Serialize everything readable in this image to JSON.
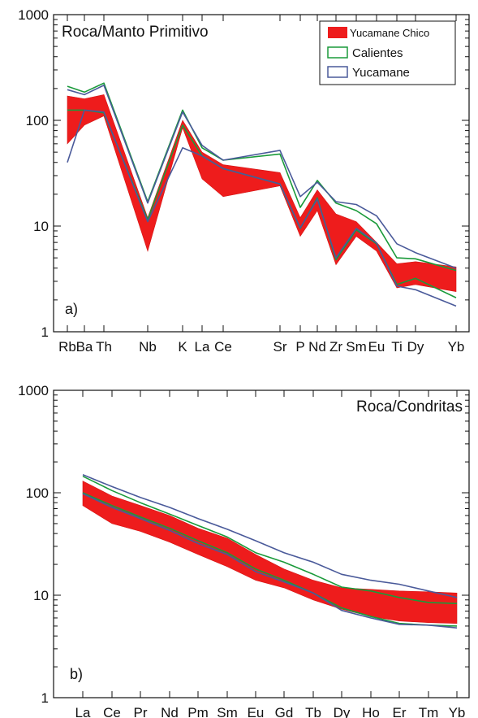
{
  "chart_data": [
    {
      "type": "line",
      "panel_label": "a)",
      "title": "Roca/Manto Primitivo",
      "yscale": "log",
      "ylim": [
        1,
        1000
      ],
      "yticks": [
        "1",
        "10",
        "100",
        "1000"
      ],
      "x_labels": [
        "Rb",
        "Ba",
        "Th",
        "Nb",
        "K",
        "La",
        "Ce",
        "Sr",
        "P",
        "Nd",
        "Zr",
        "Sm",
        "Eu",
        "Ti",
        "Dy",
        "Yb"
      ],
      "legend": {
        "position": "top-right",
        "items": [
          {
            "label": "Yucamane Chico",
            "kind": "band",
            "color": "#ee1c1c"
          },
          {
            "label": "Calientes",
            "kind": "line",
            "color": "#1a9a3a"
          },
          {
            "label": "Yucamane",
            "kind": "line",
            "color": "#4a5a9a"
          }
        ]
      },
      "band": {
        "name": "Yucamane Chico",
        "upper": [
          170,
          160,
          175,
          12,
          100,
          50,
          38,
          32,
          12,
          22,
          13,
          11,
          7,
          4.4,
          4.6,
          4.1
        ],
        "lower": [
          60,
          90,
          110,
          5.8,
          85,
          28,
          19,
          24,
          8,
          14,
          4.3,
          8,
          5.8,
          2.6,
          2.8,
          2.4
        ]
      },
      "series": [
        {
          "name": "Calientes",
          "role": "envelope-upper",
          "color": "#1a9a3a",
          "values": [
            210,
            185,
            225,
            17,
            125,
            55,
            42,
            48,
            15,
            27,
            16.5,
            14,
            10.5,
            5,
            4.9,
            3.8
          ]
        },
        {
          "name": "Calientes",
          "role": "envelope-lower",
          "color": "#1a9a3a",
          "values": [
            125,
            125,
            118,
            11.5,
            90,
            46,
            35,
            25,
            9.5,
            18.5,
            4.8,
            9.2,
            6.8,
            2.8,
            3.2,
            2.1
          ]
        },
        {
          "name": "Yucamane",
          "role": "envelope-upper",
          "color": "#4a5a9a",
          "values": [
            195,
            175,
            215,
            16.5,
            120,
            58,
            42,
            52,
            19,
            26,
            17,
            16,
            12.5,
            6.8,
            5.6,
            4
          ]
        },
        {
          "name": "Yucamane",
          "role": "envelope-lower",
          "color": "#4a5a9a",
          "values": [
            40,
            125,
            120,
            11,
            55,
            46,
            35,
            25,
            9.6,
            18,
            5,
            9.5,
            6.9,
            2.7,
            2.5,
            1.75
          ]
        }
      ]
    },
    {
      "type": "line",
      "panel_label": "b)",
      "title": "Roca/Condritas",
      "yscale": "log",
      "ylim": [
        1,
        1000
      ],
      "yticks": [
        "1",
        "10",
        "100",
        "1000"
      ],
      "x_labels": [
        "La",
        "Ce",
        "Pr",
        "Nd",
        "Pm",
        "Sm",
        "Eu",
        "Gd",
        "Tb",
        "Dy",
        "Ho",
        "Er",
        "Tm",
        "Yb"
      ],
      "band": {
        "name": "Yucamane Chico",
        "upper": [
          130,
          93,
          75,
          60,
          45,
          36,
          25,
          18,
          14,
          11.8,
          11.4,
          11,
          10.8,
          10.5
        ],
        "lower": [
          75,
          50,
          42,
          33,
          25,
          19,
          14,
          11.8,
          9,
          7.3,
          6.2,
          5.6,
          5.4,
          5.3
        ]
      },
      "series": [
        {
          "name": "Calientes",
          "role": "envelope-upper",
          "color": "#1a9a3a",
          "values": [
            145,
            105,
            80,
            62,
            48,
            37,
            26,
            21,
            16,
            12,
            11,
            9.5,
            8.5,
            8.3
          ]
        },
        {
          "name": "Calientes",
          "role": "envelope-lower",
          "color": "#1a9a3a",
          "values": [
            100,
            75,
            58,
            45,
            34,
            26,
            18,
            14,
            10.5,
            7.5,
            6.2,
            5.3,
            5.1,
            5
          ]
        },
        {
          "name": "Yucamane",
          "role": "envelope-upper",
          "color": "#4a5a9a",
          "values": [
            150,
            115,
            90,
            72,
            56,
            44,
            34,
            26,
            21,
            16,
            14,
            12.8,
            11,
            9.5
          ]
        },
        {
          "name": "Yucamane",
          "role": "envelope-lower",
          "color": "#4a5a9a",
          "values": [
            98,
            72,
            56,
            43,
            32,
            25,
            17,
            13.5,
            10.5,
            7.1,
            6,
            5.2,
            5.1,
            4.8
          ]
        }
      ]
    }
  ]
}
